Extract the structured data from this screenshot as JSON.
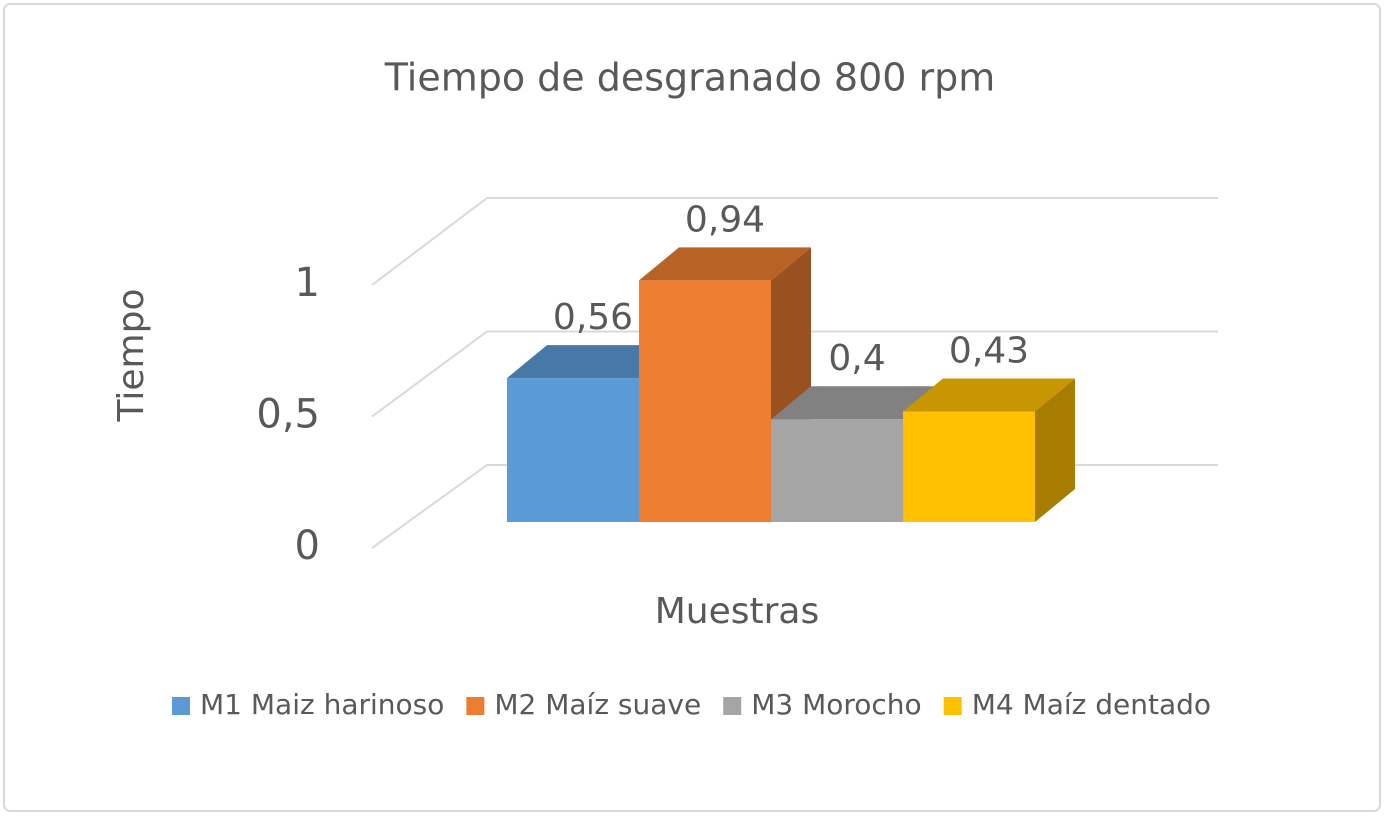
{
  "chart_data": {
    "type": "bar",
    "title": "Tiempo de desgranado 800 rpm",
    "x_label": "Muestras",
    "y_label": "Tiempo",
    "categories": [
      null
    ],
    "series": [
      {
        "name": "M1 Maiz harinoso",
        "color": "#5b9bd5",
        "values": [
          0.56
        ],
        "value_labels": [
          "0,56"
        ]
      },
      {
        "name": "M2 Maíz suave",
        "color": "#ed7d31",
        "values": [
          0.94
        ],
        "value_labels": [
          "0,94"
        ]
      },
      {
        "name": "M3 Morocho",
        "color": "#a5a5a5",
        "values": [
          0.4
        ],
        "value_labels": [
          "0,4"
        ]
      },
      {
        "name": "M4 Maíz dentado",
        "color": "#ffc000",
        "values": [
          0.43
        ],
        "value_labels": [
          "0,43"
        ]
      }
    ],
    "ylim": [
      0,
      1
    ],
    "yticks": [
      0,
      {
        "value": 0.5,
        "label": "0,5"
      },
      1
    ],
    "grid": true,
    "legend": "bottom"
  }
}
